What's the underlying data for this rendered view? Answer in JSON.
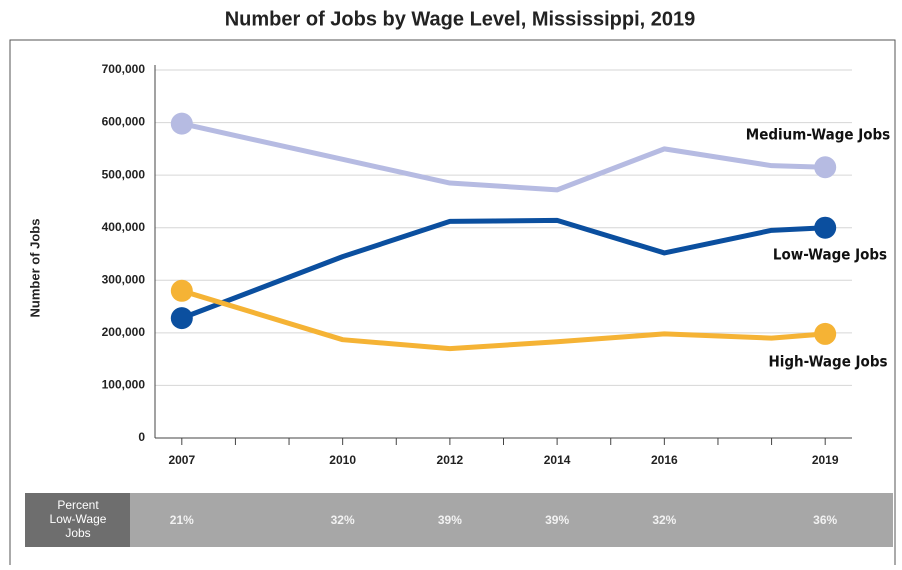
{
  "chart_data": {
    "type": "line",
    "title": "Number of Jobs by Wage Level, Mississippi, 2019",
    "y_label": "Number of Jobs",
    "x": [
      2007,
      2010,
      2012,
      2014,
      2016,
      2018,
      2019
    ],
    "series": [
      {
        "name": "Medium-Wage Jobs",
        "color": "#b6bbe2",
        "values": [
          598000,
          530000,
          485000,
          472000,
          550000,
          518000,
          515000
        ]
      },
      {
        "name": "Low-Wage Jobs",
        "color": "#0b4f9f",
        "values": [
          228000,
          345000,
          412000,
          414000,
          352000,
          395000,
          400000
        ]
      },
      {
        "name": "High-Wage Jobs",
        "color": "#f5b335",
        "values": [
          280000,
          187000,
          170000,
          183000,
          198000,
          190000,
          198000
        ]
      }
    ],
    "xlim": [
      2006.5,
      2019.5
    ],
    "xticks": [
      2007,
      2010,
      2012,
      2014,
      2016,
      2019
    ],
    "xminorticks": [
      2008,
      2009,
      2011,
      2013,
      2015,
      2017,
      2018
    ],
    "ylim": [
      0,
      700000
    ],
    "yticks": [
      0,
      {
        "value": 100000,
        "label": "100,000"
      },
      {
        "value": 200000,
        "label": "200,000"
      },
      {
        "value": 300000,
        "label": "300,000"
      },
      {
        "value": 400000,
        "label": "400,000"
      },
      {
        "value": 500000,
        "label": "500,000"
      },
      {
        "value": 600000,
        "label": "600,000"
      },
      {
        "value": 700000,
        "label": "700,000"
      }
    ],
    "grid": true,
    "percent_row": {
      "label_lines": [
        "Percent",
        "Low-Wage",
        "Jobs"
      ],
      "x": [
        2007,
        2010,
        2012,
        2014,
        2016,
        2019
      ],
      "values": [
        21,
        32,
        39,
        39,
        32,
        36
      ],
      "value_labels": [
        "21%",
        "32%",
        "39%",
        "39%",
        "32%",
        "36%"
      ]
    }
  }
}
